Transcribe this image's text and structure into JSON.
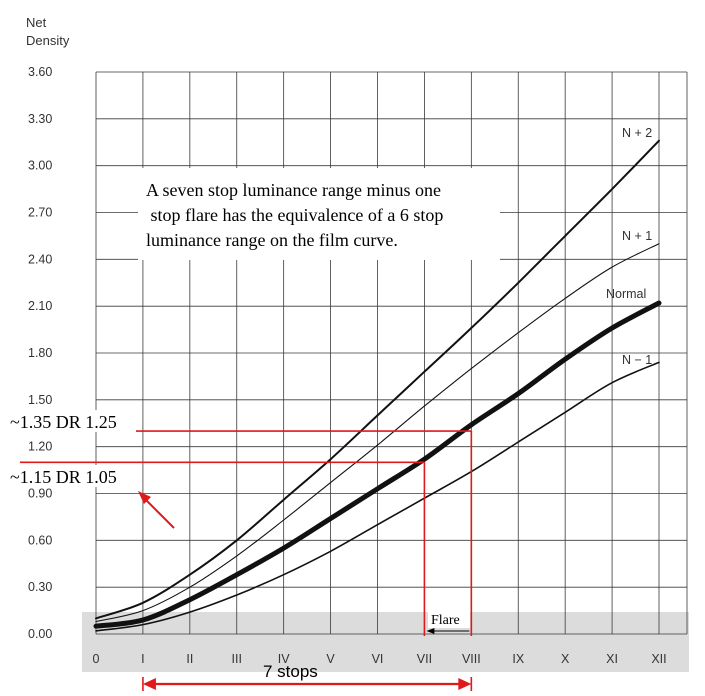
{
  "chart_data": {
    "type": "line",
    "ylabel_line1": "Net",
    "ylabel_line2": "Density",
    "y_ticks": [
      "3.60",
      "3.30",
      "3.00",
      "2.70",
      "2.40",
      "2.10",
      "1.80",
      "1.50",
      "1.20",
      "0.90",
      "0.60",
      "0.30",
      "0.00"
    ],
    "x_ticks": [
      "0",
      "I",
      "II",
      "III",
      "IV",
      "V",
      "VI",
      "VII",
      "VIII",
      "IX",
      "X",
      "XI",
      "XII"
    ],
    "xlim": [
      0,
      12
    ],
    "ylim": [
      0,
      3.6
    ],
    "grid": true,
    "series": [
      {
        "name": "N + 2",
        "x": [
          0,
          1,
          2,
          3,
          4,
          5,
          6,
          7,
          8,
          9,
          10,
          11,
          12
        ],
        "values": [
          0.1,
          0.2,
          0.38,
          0.6,
          0.86,
          1.12,
          1.4,
          1.68,
          1.96,
          2.25,
          2.55,
          2.85,
          3.16
        ]
      },
      {
        "name": "N + 1",
        "x": [
          0,
          1,
          2,
          3,
          4,
          5,
          6,
          7,
          8,
          9,
          10,
          11,
          12
        ],
        "values": [
          0.08,
          0.15,
          0.3,
          0.5,
          0.73,
          0.97,
          1.21,
          1.46,
          1.7,
          1.93,
          2.15,
          2.35,
          2.5
        ]
      },
      {
        "name": "Normal",
        "x": [
          0,
          1,
          2,
          3,
          4,
          5,
          6,
          7,
          8,
          9,
          10,
          11,
          12
        ],
        "values": [
          0.05,
          0.09,
          0.22,
          0.38,
          0.55,
          0.74,
          0.93,
          1.12,
          1.34,
          1.54,
          1.76,
          1.96,
          2.12
        ]
      },
      {
        "name": "N − 1",
        "x": [
          0,
          1,
          2,
          3,
          4,
          5,
          6,
          7,
          8,
          9,
          10,
          11,
          12
        ],
        "values": [
          0.02,
          0.06,
          0.14,
          0.25,
          0.38,
          0.53,
          0.7,
          0.87,
          1.04,
          1.23,
          1.42,
          1.61,
          1.74
        ]
      }
    ],
    "annotations": {
      "note_lines": [
        "A seven stop luminance range minus one",
        " stop flare has the equivalence of a 6 stop",
        "luminance range on the film curve."
      ],
      "upper_dr_label": "~1.35 DR 1.25",
      "lower_dr_label": "~1.15 DR 1.05",
      "upper_level": 1.3,
      "lower_level": 1.1,
      "upper_x": 8.0,
      "lower_x": 7.0,
      "flare_label": "Flare",
      "stops_label": "7 stops",
      "stops_from": 1,
      "stops_to": 8
    },
    "colors": {
      "annotation": "#e0191b",
      "curve": "#111111",
      "grid": "#3a3a3a",
      "base_band": "#dcdcdc"
    }
  }
}
